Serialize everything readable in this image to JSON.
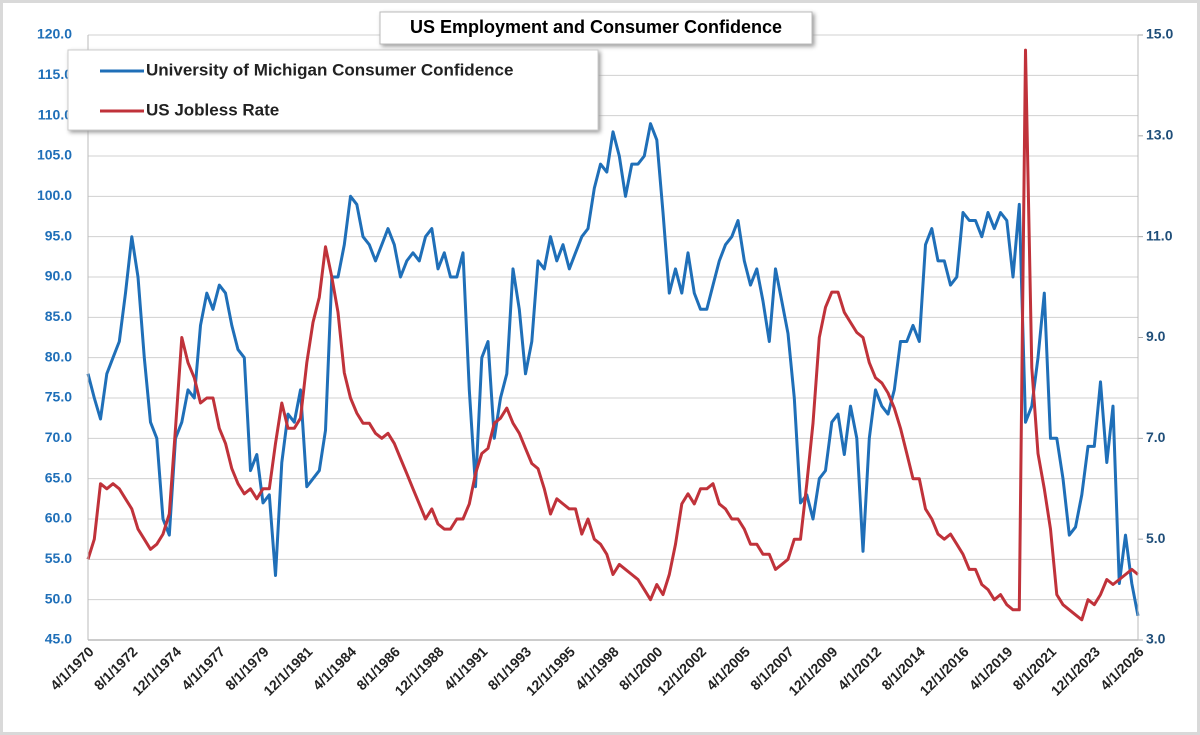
{
  "chart_data": {
    "type": "line",
    "title": "US Employment and Consumer Confidence",
    "categories": [
      "4/1/1970",
      null,
      null,
      null,
      null,
      null,
      null,
      "8/1/1972",
      null,
      null,
      null,
      null,
      null,
      null,
      "12/1/1974",
      null,
      null,
      null,
      null,
      null,
      null,
      "4/1/1977",
      null,
      null,
      null,
      null,
      null,
      null,
      "8/1/1979",
      null,
      null,
      null,
      null,
      null,
      null,
      "12/1/1981",
      null,
      null,
      null,
      null,
      null,
      null,
      "4/1/1984",
      null,
      null,
      null,
      null,
      null,
      null,
      "8/1/1986",
      null,
      null,
      null,
      null,
      null,
      null,
      "12/1/1988",
      null,
      null,
      null,
      null,
      null,
      null,
      "4/1/1991",
      null,
      null,
      null,
      null,
      null,
      null,
      "8/1/1993",
      null,
      null,
      null,
      null,
      null,
      null,
      "12/1/1995",
      null,
      null,
      null,
      null,
      null,
      null,
      "4/1/1998",
      null,
      null,
      null,
      null,
      null,
      null,
      "8/1/2000",
      null,
      null,
      null,
      null,
      null,
      null,
      "12/1/2002",
      null,
      null,
      null,
      null,
      null,
      null,
      "4/1/2005",
      null,
      null,
      null,
      null,
      null,
      null,
      "8/1/2007",
      null,
      null,
      null,
      null,
      null,
      null,
      "12/1/2009",
      null,
      null,
      null,
      null,
      null,
      null,
      "4/1/2012",
      null,
      null,
      null,
      null,
      null,
      null,
      "8/1/2014",
      null,
      null,
      null,
      null,
      null,
      null,
      "12/1/2016",
      null,
      null,
      null,
      null,
      null,
      null,
      "4/1/2019",
      null,
      null,
      null,
      null,
      null,
      null,
      "8/1/2021",
      null,
      null,
      null,
      null,
      null,
      null,
      "12/1/2023",
      null,
      null,
      null,
      null,
      null,
      null,
      "4/1/2026"
    ],
    "series": [
      {
        "name": "University of Michigan Consumer Confidence",
        "color": "#1f6fb8",
        "values": [
          78,
          75,
          72.4,
          78,
          80,
          82,
          88,
          95,
          90,
          80,
          72,
          70,
          60,
          58,
          70,
          72,
          76,
          75,
          84,
          88,
          86,
          89,
          88,
          84,
          81,
          80,
          66,
          68,
          62,
          63,
          53,
          67,
          73,
          72,
          76,
          64,
          65,
          66,
          71,
          90,
          90,
          94,
          100,
          99,
          95,
          94,
          92,
          94,
          96,
          94,
          90,
          92,
          93,
          92,
          95,
          96,
          91,
          93,
          90,
          90,
          93,
          76,
          64,
          80,
          82,
          70,
          75,
          78,
          91,
          86,
          78,
          82,
          92,
          91,
          95,
          92,
          94,
          91,
          93,
          95,
          96,
          101,
          104,
          103,
          108,
          105,
          100,
          104,
          104,
          105,
          109,
          107,
          98,
          88,
          91,
          88,
          93,
          88,
          86,
          86,
          89,
          92,
          94,
          95,
          97,
          92,
          89,
          91,
          87,
          82,
          91,
          87,
          83,
          75,
          62,
          63,
          60,
          65,
          66,
          72,
          73,
          68,
          74,
          70,
          56,
          70,
          76,
          74,
          73,
          76,
          82,
          82,
          84,
          82,
          94,
          96,
          92,
          92,
          89,
          90,
          98,
          97,
          97,
          95,
          98,
          96,
          98,
          97,
          90,
          99,
          72,
          74,
          80,
          88,
          70,
          70,
          65,
          58,
          59,
          63,
          69,
          69,
          77,
          67,
          74,
          52,
          58,
          52,
          48
        ]
      },
      {
        "name": "US Jobless Rate",
        "color": "#c0323a",
        "axis": "y2",
        "values": [
          4.6,
          5.0,
          6.1,
          6.0,
          6.1,
          6.0,
          5.8,
          5.6,
          5.2,
          5.0,
          4.8,
          4.9,
          5.1,
          5.5,
          7.2,
          9.0,
          8.5,
          8.2,
          7.7,
          7.8,
          7.8,
          7.2,
          6.9,
          6.4,
          6.1,
          5.9,
          6.0,
          5.8,
          6.0,
          6.0,
          6.9,
          7.7,
          7.2,
          7.2,
          7.4,
          8.5,
          9.3,
          9.8,
          10.8,
          10.2,
          9.5,
          8.3,
          7.8,
          7.5,
          7.3,
          7.3,
          7.1,
          7.0,
          7.1,
          6.9,
          6.6,
          6.3,
          6.0,
          5.7,
          5.4,
          5.6,
          5.3,
          5.2,
          5.2,
          5.4,
          5.4,
          5.7,
          6.3,
          6.7,
          6.8,
          7.3,
          7.4,
          7.6,
          7.3,
          7.1,
          6.8,
          6.5,
          6.4,
          6.0,
          5.5,
          5.8,
          5.7,
          5.6,
          5.6,
          5.1,
          5.4,
          5.0,
          4.9,
          4.7,
          4.3,
          4.5,
          4.4,
          4.3,
          4.2,
          4.0,
          3.8,
          4.1,
          3.9,
          4.3,
          4.9,
          5.7,
          5.9,
          5.7,
          6.0,
          6.0,
          6.1,
          5.7,
          5.6,
          5.4,
          5.4,
          5.2,
          4.9,
          4.9,
          4.7,
          4.7,
          4.4,
          4.5,
          4.6,
          5.0,
          5.0,
          6.1,
          7.3,
          9.0,
          9.6,
          9.9,
          9.9,
          9.5,
          9.3,
          9.1,
          9.0,
          8.5,
          8.2,
          8.1,
          7.9,
          7.6,
          7.2,
          6.7,
          6.2,
          6.2,
          5.6,
          5.4,
          5.1,
          5.0,
          5.1,
          4.9,
          4.7,
          4.4,
          4.4,
          4.1,
          4.0,
          3.8,
          3.9,
          3.7,
          3.6,
          3.6,
          14.7,
          8.4,
          6.7,
          6.0,
          5.2,
          3.9,
          3.7,
          3.6,
          3.5,
          3.4,
          3.8,
          3.7,
          3.9,
          4.2,
          4.1,
          4.2,
          4.3,
          4.4,
          4.3
        ]
      }
    ],
    "ylim": [
      45,
      120
    ],
    "yticks": [
      {
        "value": 45,
        "label": "45.0"
      },
      {
        "value": 50,
        "label": "50.0"
      },
      {
        "value": 55,
        "label": "55.0"
      },
      {
        "value": 60,
        "label": "60.0"
      },
      {
        "value": 65,
        "label": "65.0"
      },
      {
        "value": 70,
        "label": "70.0"
      },
      {
        "value": 75,
        "label": "75.0"
      },
      {
        "value": 80,
        "label": "80.0"
      },
      {
        "value": 85,
        "label": "85.0"
      },
      {
        "value": 90,
        "label": "90.0"
      },
      {
        "value": 95,
        "label": "95.0"
      },
      {
        "value": 100,
        "label": "100.0"
      },
      {
        "value": 105,
        "label": "105.0"
      },
      {
        "value": 110,
        "label": "110.0"
      },
      {
        "value": 115,
        "label": "115.0"
      },
      {
        "value": 120,
        "label": "120.0"
      }
    ],
    "y2lim": [
      3,
      15
    ],
    "y2ticks": [
      {
        "value": 3,
        "label": "3.0"
      },
      {
        "value": 5,
        "label": "5.0"
      },
      {
        "value": 7,
        "label": "7.0"
      },
      {
        "value": 9,
        "label": "9.0"
      },
      {
        "value": 11,
        "label": "11.0"
      },
      {
        "value": 13,
        "label": "13.0"
      },
      {
        "value": 15,
        "label": "15.0"
      }
    ],
    "grid": true,
    "legend": "upper left"
  }
}
